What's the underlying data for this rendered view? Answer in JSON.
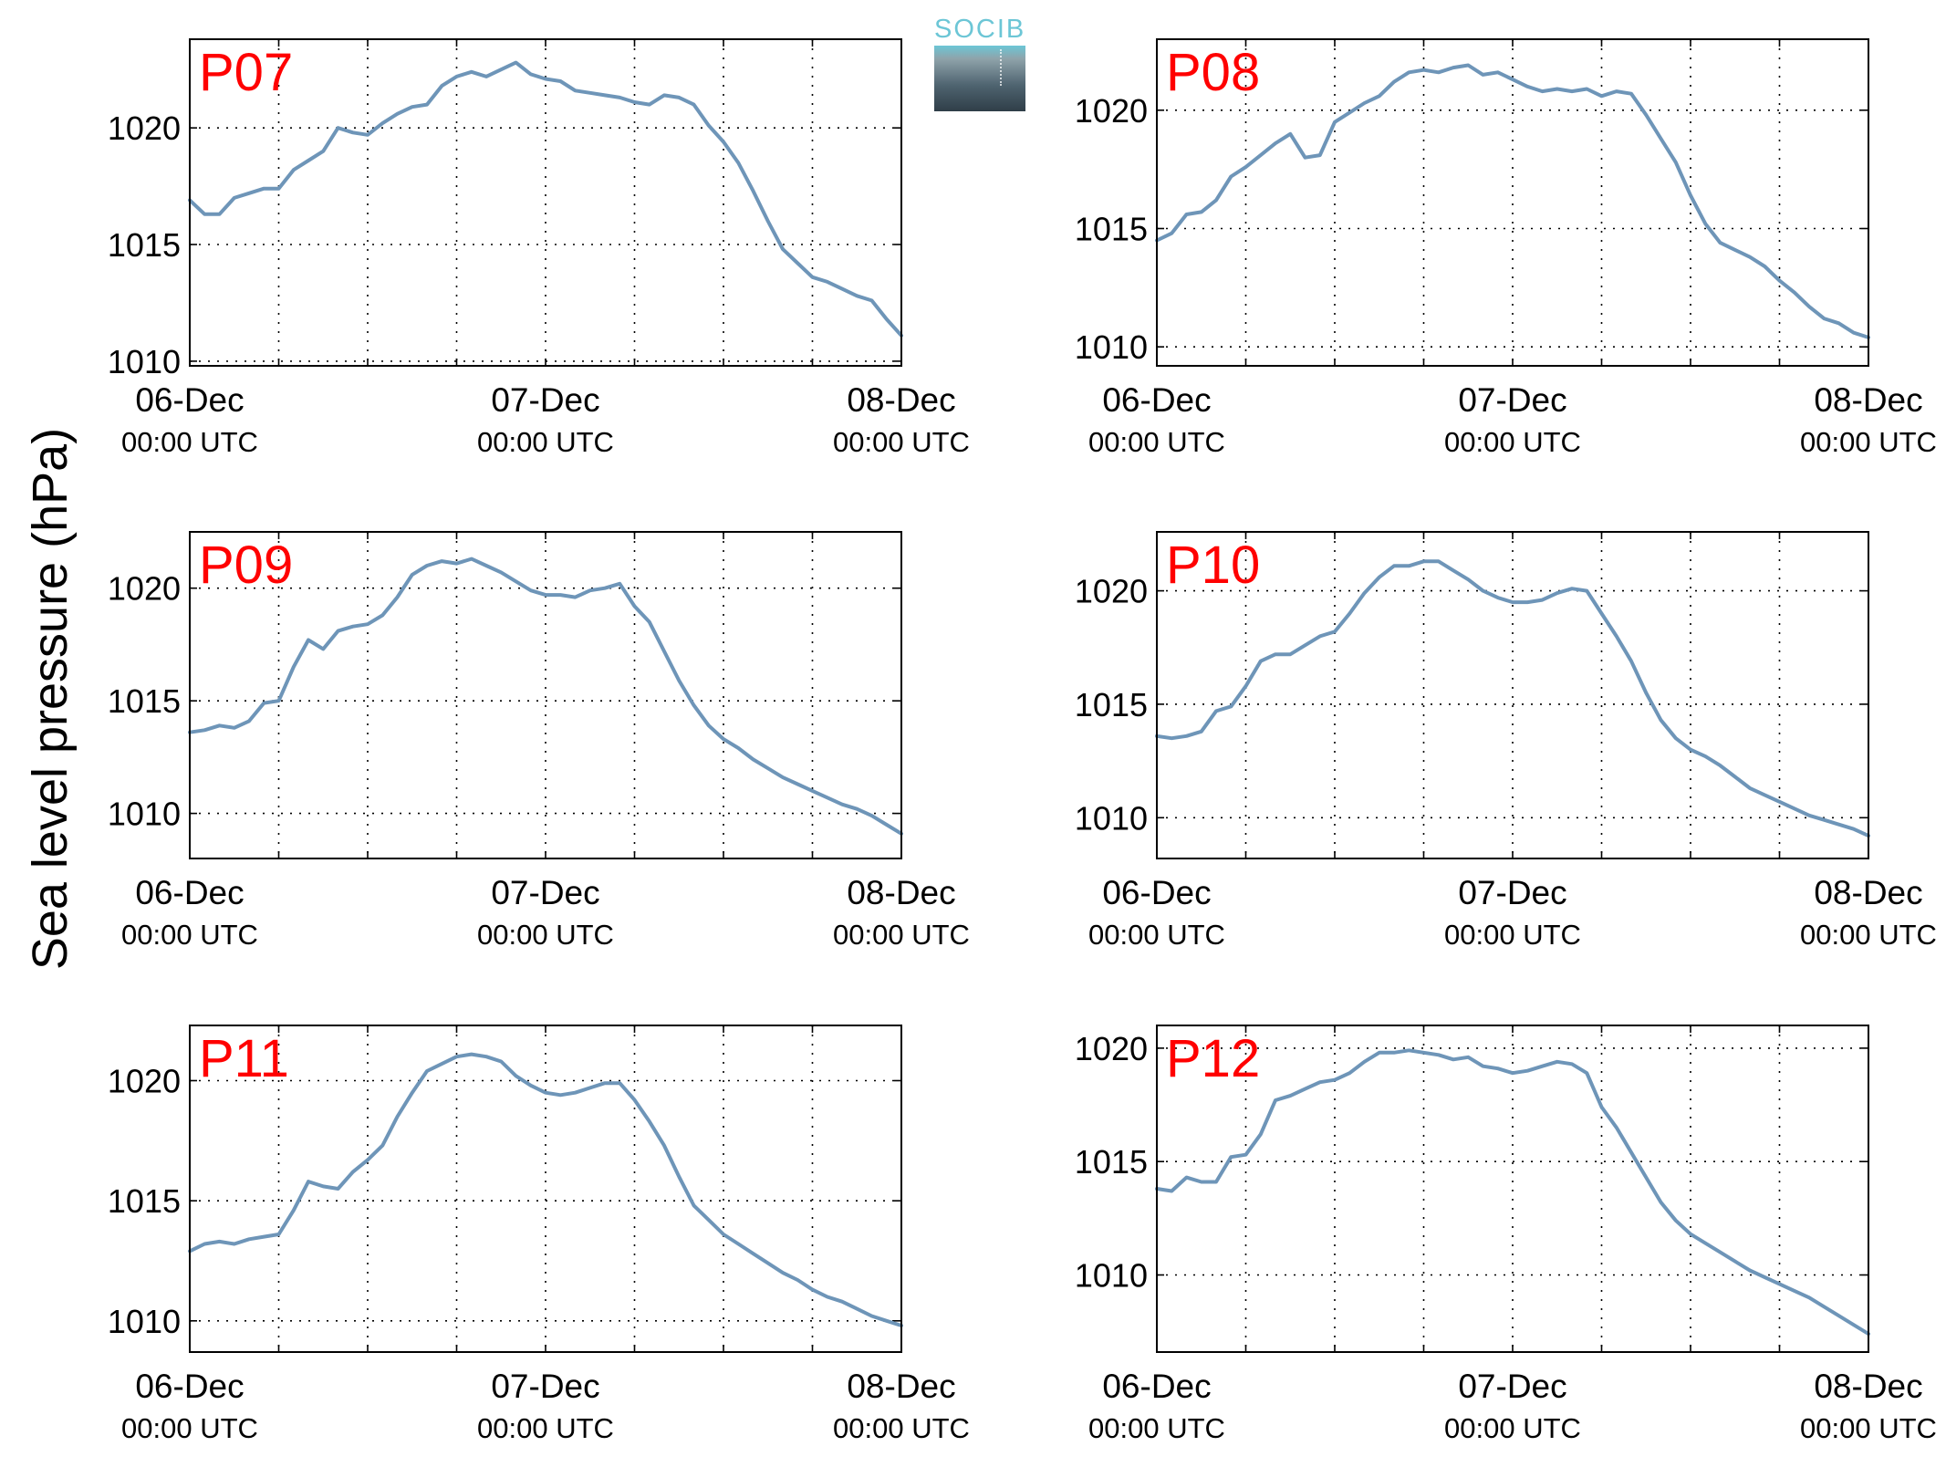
{
  "figure": {
    "ylabel": "Sea level pressure (hPa)",
    "logo_text": "SOCIB",
    "colors": {
      "line": "#6e95b8",
      "panel_label": "#ff0000",
      "axis": "#000000",
      "grid": "#000000"
    }
  },
  "chart_data": [
    {
      "type": "line",
      "title": "P07",
      "ylim": [
        1009.8,
        1023.8
      ],
      "yticks": [
        1010,
        1015,
        1020
      ],
      "x_start": "06-Dec 00:00 UTC",
      "x_end": "08-Dec 00:00 UTC",
      "x_grid_step_hours": 6,
      "xticks": [
        {
          "hour": 0,
          "date": "06-Dec",
          "time": "00:00 UTC"
        },
        {
          "hour": 24,
          "date": "07-Dec",
          "time": "00:00 UTC"
        },
        {
          "hour": 48,
          "date": "08-Dec",
          "time": "00:00 UTC"
        }
      ],
      "x": [
        0,
        1,
        2,
        3,
        4,
        5,
        6,
        7,
        8,
        9,
        10,
        11,
        12,
        13,
        14,
        15,
        16,
        17,
        18,
        19,
        20,
        21,
        22,
        23,
        24,
        25,
        26,
        27,
        28,
        29,
        30,
        31,
        32,
        33,
        34,
        35,
        36,
        37,
        38,
        39,
        40,
        41,
        42,
        43,
        44,
        45,
        46,
        47,
        48
      ],
      "values": [
        1016.9,
        1016.3,
        1016.3,
        1017.0,
        1017.2,
        1017.4,
        1017.4,
        1018.2,
        1018.6,
        1019.0,
        1020.0,
        1019.8,
        1019.7,
        1020.2,
        1020.6,
        1020.9,
        1021.0,
        1021.8,
        1022.2,
        1022.4,
        1022.2,
        1022.5,
        1022.8,
        1022.3,
        1022.1,
        1022.0,
        1021.6,
        1021.5,
        1021.4,
        1021.3,
        1021.1,
        1021.0,
        1021.4,
        1021.3,
        1021.0,
        1020.1,
        1019.4,
        1018.5,
        1017.3,
        1016.0,
        1014.8,
        1014.2,
        1013.6,
        1013.4,
        1013.1,
        1012.8,
        1012.6,
        1011.8,
        1011.1
      ]
    },
    {
      "type": "line",
      "title": "P08",
      "ylim": [
        1009.2,
        1023.0
      ],
      "yticks": [
        1010,
        1015,
        1020
      ],
      "x_start": "06-Dec 00:00 UTC",
      "x_end": "08-Dec 00:00 UTC",
      "x_grid_step_hours": 6,
      "xticks": [
        {
          "hour": 0,
          "date": "06-Dec",
          "time": "00:00 UTC"
        },
        {
          "hour": 24,
          "date": "07-Dec",
          "time": "00:00 UTC"
        },
        {
          "hour": 48,
          "date": "08-Dec",
          "time": "00:00 UTC"
        }
      ],
      "x": [
        0,
        1,
        2,
        3,
        4,
        5,
        6,
        7,
        8,
        9,
        10,
        11,
        12,
        13,
        14,
        15,
        16,
        17,
        18,
        19,
        20,
        21,
        22,
        23,
        24,
        25,
        26,
        27,
        28,
        29,
        30,
        31,
        32,
        33,
        34,
        35,
        36,
        37,
        38,
        39,
        40,
        41,
        42,
        43,
        44,
        45,
        46,
        47,
        48
      ],
      "values": [
        1014.5,
        1014.8,
        1015.6,
        1015.7,
        1016.2,
        1017.2,
        1017.6,
        1018.1,
        1018.6,
        1019.0,
        1018.0,
        1018.1,
        1019.5,
        1019.9,
        1020.3,
        1020.6,
        1021.2,
        1021.6,
        1021.7,
        1021.6,
        1021.8,
        1021.9,
        1021.5,
        1021.6,
        1021.3,
        1021.0,
        1020.8,
        1020.9,
        1020.8,
        1020.9,
        1020.6,
        1020.8,
        1020.7,
        1019.8,
        1018.8,
        1017.8,
        1016.4,
        1015.2,
        1014.4,
        1014.1,
        1013.8,
        1013.4,
        1012.8,
        1012.3,
        1011.7,
        1011.2,
        1011.0,
        1010.6,
        1010.4
      ]
    },
    {
      "type": "line",
      "title": "P09",
      "ylim": [
        1008.0,
        1022.5
      ],
      "yticks": [
        1010,
        1015,
        1020
      ],
      "x_start": "06-Dec 00:00 UTC",
      "x_end": "08-Dec 00:00 UTC",
      "x_grid_step_hours": 6,
      "xticks": [
        {
          "hour": 0,
          "date": "06-Dec",
          "time": "00:00 UTC"
        },
        {
          "hour": 24,
          "date": "07-Dec",
          "time": "00:00 UTC"
        },
        {
          "hour": 48,
          "date": "08-Dec",
          "time": "00:00 UTC"
        }
      ],
      "x": [
        0,
        1,
        2,
        3,
        4,
        5,
        6,
        7,
        8,
        9,
        10,
        11,
        12,
        13,
        14,
        15,
        16,
        17,
        18,
        19,
        20,
        21,
        22,
        23,
        24,
        25,
        26,
        27,
        28,
        29,
        30,
        31,
        32,
        33,
        34,
        35,
        36,
        37,
        38,
        39,
        40,
        41,
        42,
        43,
        44,
        45,
        46,
        47,
        48
      ],
      "values": [
        1013.6,
        1013.7,
        1013.9,
        1013.8,
        1014.1,
        1014.9,
        1015.0,
        1016.5,
        1017.7,
        1017.3,
        1018.1,
        1018.3,
        1018.4,
        1018.8,
        1019.6,
        1020.6,
        1021.0,
        1021.2,
        1021.1,
        1021.3,
        1021.0,
        1020.7,
        1020.3,
        1019.9,
        1019.7,
        1019.7,
        1019.6,
        1019.9,
        1020.0,
        1020.2,
        1019.2,
        1018.5,
        1017.2,
        1015.9,
        1014.8,
        1013.9,
        1013.3,
        1012.9,
        1012.4,
        1012.0,
        1011.6,
        1011.3,
        1011.0,
        1010.7,
        1010.4,
        1010.2,
        1009.9,
        1009.5,
        1009.1
      ]
    },
    {
      "type": "line",
      "title": "P10",
      "ylim": [
        1008.2,
        1022.6
      ],
      "yticks": [
        1010,
        1015,
        1020
      ],
      "x_start": "06-Dec 00:00 UTC",
      "x_end": "08-Dec 00:00 UTC",
      "x_grid_step_hours": 6,
      "xticks": [
        {
          "hour": 0,
          "date": "06-Dec",
          "time": "00:00 UTC"
        },
        {
          "hour": 24,
          "date": "07-Dec",
          "time": "00:00 UTC"
        },
        {
          "hour": 48,
          "date": "08-Dec",
          "time": "00:00 UTC"
        }
      ],
      "x": [
        0,
        1,
        2,
        3,
        4,
        5,
        6,
        7,
        8,
        9,
        10,
        11,
        12,
        13,
        14,
        15,
        16,
        17,
        18,
        19,
        20,
        21,
        22,
        23,
        24,
        25,
        26,
        27,
        28,
        29,
        30,
        31,
        32,
        33,
        34,
        35,
        36,
        37,
        38,
        39,
        40,
        41,
        42,
        43,
        44,
        45,
        46,
        47,
        48
      ],
      "values": [
        1013.6,
        1013.5,
        1013.6,
        1013.8,
        1014.7,
        1014.9,
        1015.8,
        1016.9,
        1017.2,
        1017.2,
        1017.6,
        1018.0,
        1018.2,
        1019.0,
        1019.9,
        1020.6,
        1021.1,
        1021.1,
        1021.3,
        1021.3,
        1020.9,
        1020.5,
        1020.0,
        1019.7,
        1019.5,
        1019.5,
        1019.6,
        1019.9,
        1020.1,
        1020.0,
        1019.0,
        1018.0,
        1016.9,
        1015.5,
        1014.3,
        1013.5,
        1013.0,
        1012.7,
        1012.3,
        1011.8,
        1011.3,
        1011.0,
        1010.7,
        1010.4,
        1010.1,
        1009.9,
        1009.7,
        1009.5,
        1009.2
      ]
    },
    {
      "type": "line",
      "title": "P11",
      "ylim": [
        1008.7,
        1022.3
      ],
      "yticks": [
        1010,
        1015,
        1020
      ],
      "x_start": "06-Dec 00:00 UTC",
      "x_end": "08-Dec 00:00 UTC",
      "x_grid_step_hours": 6,
      "xticks": [
        {
          "hour": 0,
          "date": "06-Dec",
          "time": "00:00 UTC"
        },
        {
          "hour": 24,
          "date": "07-Dec",
          "time": "00:00 UTC"
        },
        {
          "hour": 48,
          "date": "08-Dec",
          "time": "00:00 UTC"
        }
      ],
      "x": [
        0,
        1,
        2,
        3,
        4,
        5,
        6,
        7,
        8,
        9,
        10,
        11,
        12,
        13,
        14,
        15,
        16,
        17,
        18,
        19,
        20,
        21,
        22,
        23,
        24,
        25,
        26,
        27,
        28,
        29,
        30,
        31,
        32,
        33,
        34,
        35,
        36,
        37,
        38,
        39,
        40,
        41,
        42,
        43,
        44,
        45,
        46,
        47,
        48
      ],
      "values": [
        1012.9,
        1013.2,
        1013.3,
        1013.2,
        1013.4,
        1013.5,
        1013.6,
        1014.6,
        1015.8,
        1015.6,
        1015.5,
        1016.2,
        1016.7,
        1017.3,
        1018.5,
        1019.5,
        1020.4,
        1020.7,
        1021.0,
        1021.1,
        1021.0,
        1020.8,
        1020.2,
        1019.8,
        1019.5,
        1019.4,
        1019.5,
        1019.7,
        1019.9,
        1019.9,
        1019.2,
        1018.3,
        1017.3,
        1016.0,
        1014.8,
        1014.2,
        1013.6,
        1013.2,
        1012.8,
        1012.4,
        1012.0,
        1011.7,
        1011.3,
        1011.0,
        1010.8,
        1010.5,
        1010.2,
        1010.0,
        1009.8
      ]
    },
    {
      "type": "line",
      "title": "P12",
      "ylim": [
        1006.6,
        1021.0
      ],
      "yticks": [
        1010,
        1015,
        1020
      ],
      "x_start": "06-Dec 00:00 UTC",
      "x_end": "08-Dec 00:00 UTC",
      "x_grid_step_hours": 6,
      "xticks": [
        {
          "hour": 0,
          "date": "06-Dec",
          "time": "00:00 UTC"
        },
        {
          "hour": 24,
          "date": "07-Dec",
          "time": "00:00 UTC"
        },
        {
          "hour": 48,
          "date": "08-Dec",
          "time": "00:00 UTC"
        }
      ],
      "x": [
        0,
        1,
        2,
        3,
        4,
        5,
        6,
        7,
        8,
        9,
        10,
        11,
        12,
        13,
        14,
        15,
        16,
        17,
        18,
        19,
        20,
        21,
        22,
        23,
        24,
        25,
        26,
        27,
        28,
        29,
        30,
        31,
        32,
        33,
        34,
        35,
        36,
        37,
        38,
        39,
        40,
        41,
        42,
        43,
        44,
        45,
        46,
        47,
        48
      ],
      "values": [
        1013.8,
        1013.7,
        1014.3,
        1014.1,
        1014.1,
        1015.2,
        1015.3,
        1016.2,
        1017.7,
        1017.9,
        1018.2,
        1018.5,
        1018.6,
        1018.9,
        1019.4,
        1019.8,
        1019.8,
        1019.9,
        1019.8,
        1019.7,
        1019.5,
        1019.6,
        1019.2,
        1019.1,
        1018.9,
        1019.0,
        1019.2,
        1019.4,
        1019.3,
        1018.9,
        1017.4,
        1016.5,
        1015.4,
        1014.3,
        1013.2,
        1012.4,
        1011.8,
        1011.4,
        1011.0,
        1010.6,
        1010.2,
        1009.9,
        1009.6,
        1009.3,
        1009.0,
        1008.6,
        1008.2,
        1007.8,
        1007.4
      ]
    }
  ]
}
